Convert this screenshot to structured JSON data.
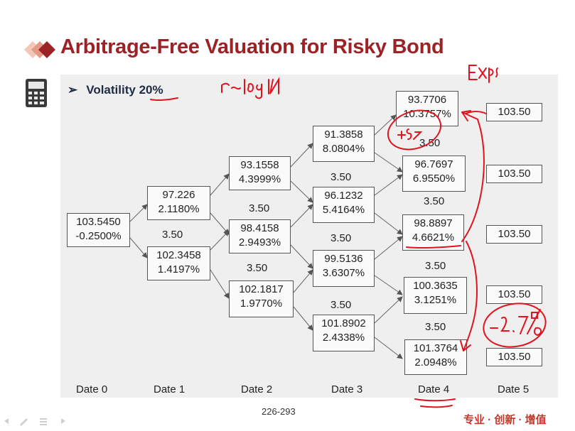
{
  "slide": {
    "title": "Arbitrage-Free Valuation for Risky Bond",
    "volatility_label": "Volatility ",
    "volatility_value": "20%",
    "page_number": "226-293",
    "brand_text": "专业 · 创新 · 增值"
  },
  "tree": {
    "date0": [
      {
        "value": "103.5450",
        "rate": "-0.2500%"
      }
    ],
    "date1": [
      {
        "value": "97.226",
        "rate": "2.1180%"
      },
      {
        "value": "102.3458",
        "rate": "1.4197%"
      }
    ],
    "date2": [
      {
        "value": "93.1558",
        "rate": "4.3999%"
      },
      {
        "value": "98.4158",
        "rate": "2.9493%"
      },
      {
        "value": "102.1817",
        "rate": "1.9770%"
      }
    ],
    "date3": [
      {
        "value": "91.3858",
        "rate": "8.0804%"
      },
      {
        "value": "96.1232",
        "rate": "5.4164%"
      },
      {
        "value": "99.5136",
        "rate": "3.6307%"
      },
      {
        "value": "101.8902",
        "rate": "2.4338%"
      }
    ],
    "date4": [
      {
        "value": "93.7706",
        "rate": "10.3757%"
      },
      {
        "value": "96.7697",
        "rate": "6.9550%"
      },
      {
        "value": "98.8897",
        "rate": "4.6621%"
      },
      {
        "value": "100.3635",
        "rate": "3.1251%"
      },
      {
        "value": "101.3764",
        "rate": "2.0948%"
      }
    ],
    "date5": [
      "103.50",
      "103.50",
      "103.50",
      "103.50",
      "103.50"
    ],
    "coupon": "3.50"
  },
  "dates": [
    "Date 0",
    "Date 1",
    "Date 2",
    "Date 3",
    "Date 4",
    "Date 5"
  ],
  "annotations": {
    "top_right": "Exp",
    "formula": "r~logN",
    "circle_top": "+5%",
    "circle_bottom": "-2.7%"
  },
  "colors": {
    "title": "#9b2226",
    "ink": "#e0141e",
    "panel": "#efefef"
  }
}
